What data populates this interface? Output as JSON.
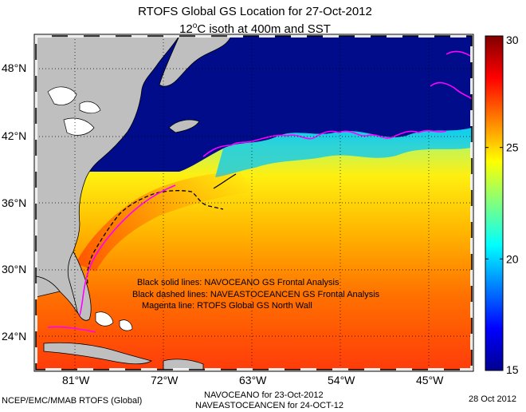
{
  "title": "RTOFS Global GS Location for 27-Oct-2012",
  "subtitle_prefix": "12",
  "subtitle_deg": "o",
  "subtitle_suffix": "C isoth at 400m and SST",
  "lat_labels": [
    "48°N",
    "42°N",
    "36°N",
    "30°N",
    "24°N"
  ],
  "lon_labels": [
    "81°W",
    "72°W",
    "63°W",
    "54°W",
    "45°W"
  ],
  "legend_lines": [
    "Black solid lines: NAVOCEANO GS Frontal Analysis",
    "Black dashed lines: NAVEASTOCEANCEN GS Frontal Analysis",
    "Magenta line: RTOFS Global GS North Wall"
  ],
  "colorbar": {
    "min": 15,
    "max": 30,
    "tick_labels": [
      "30",
      "25",
      "20",
      "15"
    ],
    "tick_values": [
      30,
      25,
      20,
      15
    ]
  },
  "footer": {
    "left": "NCEP/EMC/MMAB RTOFS (Global)",
    "center_line1": "NAVOCEANO for 23-Oct-2012",
    "center_line2": "NAVEASTOCEANCEN for 24-OCT-12",
    "right": "28 Oct 2012"
  },
  "colors": {
    "land": "#bfbfbf",
    "north_wall": "#ff00ff",
    "front": "#000000"
  }
}
